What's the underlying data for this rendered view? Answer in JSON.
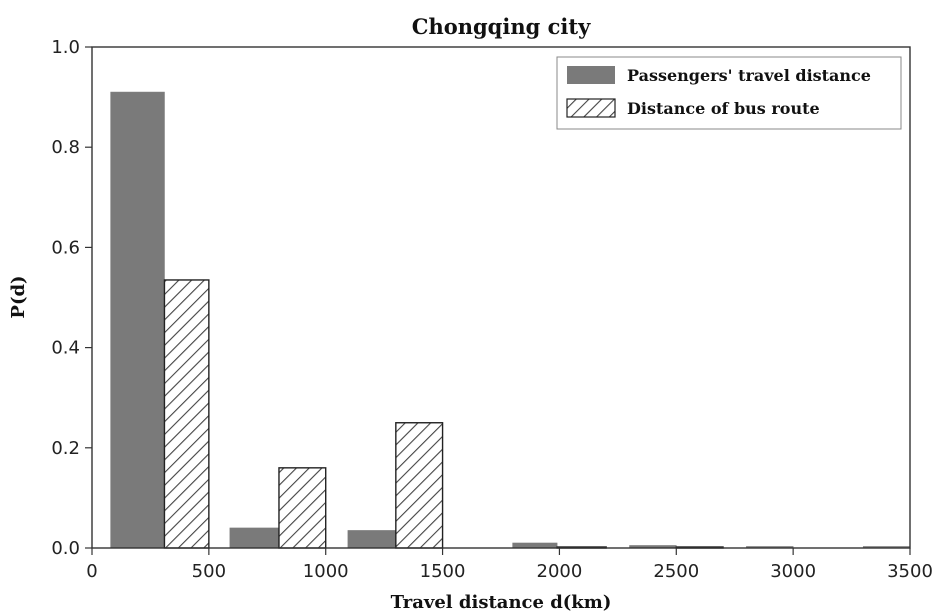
{
  "chart_data": {
    "type": "bar",
    "title": "Chongqing city",
    "xlabel": "Travel distance d(km)",
    "ylabel": "P(d)",
    "xlim": [
      0,
      3500
    ],
    "ylim": [
      0,
      1.0
    ],
    "xticks": [
      0,
      500,
      1000,
      1500,
      2000,
      2500,
      3000,
      3500
    ],
    "yticks": [
      0.0,
      0.2,
      0.4,
      0.6,
      0.8,
      1.0
    ],
    "xtick_labels": [
      "0",
      "500",
      "1000",
      "1500",
      "2000",
      "2500",
      "3000",
      "3500"
    ],
    "ytick_labels": [
      "0.0",
      "0.2",
      "0.4",
      "0.6",
      "0.8",
      "1.0"
    ],
    "grid": false,
    "legend_position": "top-right",
    "series": [
      {
        "name": "Passengers' travel distance",
        "style": "solid",
        "color": "#7a7a7a",
        "bars": [
          {
            "x0": 80,
            "x1": 310,
            "value": 0.91
          },
          {
            "x0": 590,
            "x1": 800,
            "value": 0.04
          },
          {
            "x0": 1095,
            "x1": 1300,
            "value": 0.035
          },
          {
            "x0": 1800,
            "x1": 1990,
            "value": 0.01
          },
          {
            "x0": 2300,
            "x1": 2500,
            "value": 0.005
          },
          {
            "x0": 2800,
            "x1": 3000,
            "value": 0.003
          },
          {
            "x0": 3300,
            "x1": 3500,
            "value": 0.003
          }
        ]
      },
      {
        "name": "Distance of bus route",
        "style": "hatched",
        "color": "#ffffff",
        "bars": [
          {
            "x0": 310,
            "x1": 500,
            "value": 0.535
          },
          {
            "x0": 800,
            "x1": 1000,
            "value": 0.16
          },
          {
            "x0": 1300,
            "x1": 1500,
            "value": 0.25
          },
          {
            "x0": 1990,
            "x1": 2200,
            "value": 0.002
          },
          {
            "x0": 2500,
            "x1": 2700,
            "value": 0.002
          }
        ]
      }
    ]
  }
}
